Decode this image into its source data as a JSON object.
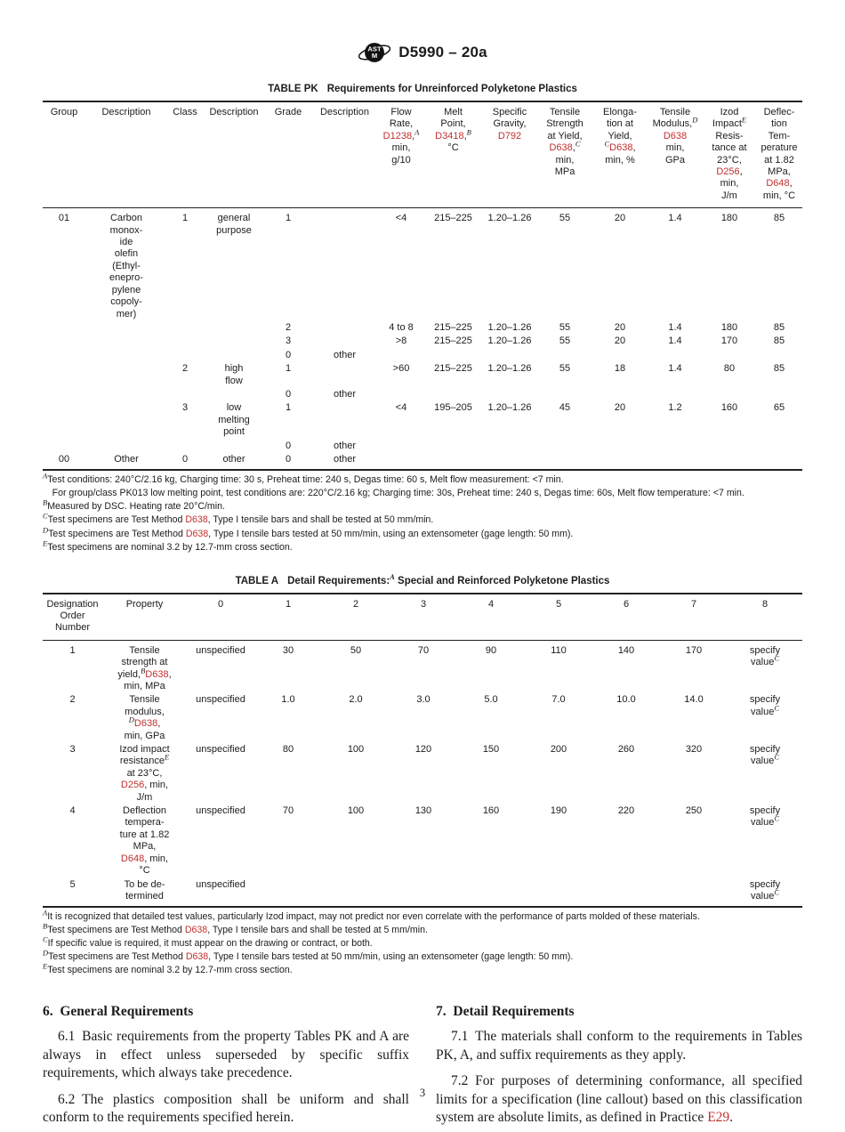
{
  "header": {
    "standard_code": "D5990 – 20a",
    "logo_name": "astm-logo"
  },
  "table_pk": {
    "label": "TABLE PK",
    "title": "Requirements for Unreinforced Polyketone Plastics",
    "headers": [
      "Group",
      "Description",
      "Class",
      "Description",
      "Grade",
      "Description",
      "Flow\nRate,\n{{D1238}},^{A}\nmin,\ng/10",
      "Melt\nPoint,\n{{D3418}},^{B}\n°C",
      "Specific\nGravity,\n{{D792}}",
      "Tensile\nStrength\nat Yield,\n{{D638}},^{C}\nmin,\nMPa",
      "Elonga-\ntion at\nYield,\n^{C}{{D638}},\nmin, %",
      "Tensile\nModulus,^{D}\n{{D638}}\nmin,\nGPa",
      "Izod\nImpact^{E}\nResis-\ntance at\n23°C,\n{{D256}},\nmin,\nJ/m",
      "Deflec-\ntion\nTem-\nperature\nat 1.82\nMPa,\n{{D648}},\nmin, °C"
    ],
    "rows": [
      [
        "01",
        "Carbon\nmonox-\nide\nolefin\n(Ethyl-\nenepro-\npylene\ncopoly-\nmer)",
        "1",
        "general\npurpose",
        "1",
        "",
        "<4",
        "215–225",
        "1.20–1.26",
        "55",
        "20",
        "1.4",
        "180",
        "85"
      ],
      [
        "",
        "",
        "",
        "",
        "2",
        "",
        "4 to 8",
        "215–225",
        "1.20–1.26",
        "55",
        "20",
        "1.4",
        "180",
        "85"
      ],
      [
        "",
        "",
        "",
        "",
        "3",
        "",
        ">8",
        "215–225",
        "1.20–1.26",
        "55",
        "20",
        "1.4",
        "170",
        "85"
      ],
      [
        "",
        "",
        "",
        "",
        "0",
        "other",
        "",
        "",
        "",
        "",
        "",
        "",
        "",
        ""
      ],
      [
        "",
        "",
        "2",
        "high\nflow",
        "1",
        "",
        ">60",
        "215–225",
        "1.20–1.26",
        "55",
        "18",
        "1.4",
        "80",
        "85"
      ],
      [
        "",
        "",
        "",
        "",
        "0",
        "other",
        "",
        "",
        "",
        "",
        "",
        "",
        "",
        ""
      ],
      [
        "",
        "",
        "3",
        "low\nmelting\npoint",
        "1",
        "",
        "<4",
        "195–205",
        "1.20–1.26",
        "45",
        "20",
        "1.2",
        "160",
        "65"
      ],
      [
        "",
        "",
        "",
        "",
        "0",
        "other",
        "",
        "",
        "",
        "",
        "",
        "",
        "",
        ""
      ],
      [
        "00",
        "Other",
        "0",
        "other",
        "0",
        "other",
        "",
        "",
        "",
        "",
        "",
        "",
        "",
        ""
      ]
    ],
    "footnotes": [
      "^{A}Test conditions: 240°C/2.16 kg, Charging time: 30 s, Preheat time: 240 s, Degas time: 60 s, Melt flow measurement: <7 min.",
      " For group/class PK013 low melting point, test conditions are: 220°C/2.16 kg; Charging time: 30s, Preheat time: 240 s, Degas time: 60s, Melt flow temperature: <7 min.",
      "^{B}Measured by DSC. Heating rate 20°C/min.",
      "^{C}Test specimens are Test Method {{D638}}, Type I tensile bars and shall be tested at 50 mm/min.",
      "^{D}Test specimens are Test Method {{D638}}, Type I tensile bars tested at 50 mm/min, using an extensometer (gage length: 50 mm).",
      "^{E}Test specimens are nominal 3.2 by 12.7-mm cross section."
    ]
  },
  "table_a": {
    "label": "TABLE A",
    "title": "Detail Requirements:^{A} Special and Reinforced Polyketone Plastics",
    "headers": [
      "Designation\nOrder\nNumber",
      "Property",
      "0",
      "1",
      "2",
      "3",
      "4",
      "5",
      "6",
      "7",
      "8"
    ],
    "rows": [
      [
        "1",
        "Tensile\nstrength at\nyield,^{B}{{D638}},\nmin, MPa",
        "unspecified",
        "30",
        "50",
        "70",
        "90",
        "110",
        "140",
        "170",
        "specify\nvalue^{C}"
      ],
      [
        "2",
        "Tensile\nmodulus,\n^{D}{{D638}},\nmin, GPa",
        "unspecified",
        "1.0",
        "2.0",
        "3.0",
        "5.0",
        "7.0",
        "10.0",
        "14.0",
        "specify\nvalue^{C}"
      ],
      [
        "3",
        "Izod impact\nresistance^{E}\nat 23°C,\n{{D256}}, min,\nJ/m",
        "unspecified",
        "80",
        "100",
        "120",
        "150",
        "200",
        "260",
        "320",
        "specify\nvalue^{C}"
      ],
      [
        "4",
        "Deflection\ntempera-\nture at 1.82\nMPa,\n{{D648}}, min,\n°C",
        "unspecified",
        "70",
        "100",
        "130",
        "160",
        "190",
        "220",
        "250",
        "specify\nvalue^{C}"
      ],
      [
        "5",
        "To be de-\ntermined",
        "unspecified",
        "",
        "",
        "",
        "",
        "",
        "",
        "",
        "specify\nvalue^{C}"
      ]
    ],
    "footnotes": [
      "^{A}It is recognized that detailed test values, particularly Izod impact, may not predict nor even correlate with the performance of parts molded of these materials.",
      "^{B}Test specimens are Test Method {{D638}}, Type I tensile bars and shall be tested at 5 mm/min.",
      "^{C}If specific value is required, it must appear on the drawing or contract, or both.",
      "^{D}Test specimens are Test Method {{D638}}, Type I tensile bars tested at 50 mm/min, using an extensometer (gage length: 50 mm).",
      "^{E}Test specimens are nominal 3.2 by 12.7-mm cross section."
    ]
  },
  "sections": {
    "left": {
      "heading": "6. General Requirements",
      "paragraphs": [
        "6.1 Basic requirements from the property Tables PK and A are always in effect unless superseded by specific suffix requirements, which always take precedence.",
        "6.2 The plastics composition shall be uniform and shall conform to the requirements specified herein."
      ]
    },
    "right": {
      "heading": "7. Detail Requirements",
      "paragraphs": [
        "7.1 The materials shall conform to the requirements in Tables PK, A, and suffix requirements as they apply.",
        "7.2 For purposes of determining conformance, all specified limits for a specification (line callout) based on this classification system are absolute limits, as defined in Practice {{E29}}."
      ]
    }
  },
  "footer": {
    "page_number": "3"
  },
  "colors": {
    "reference_red": "#c22f2f",
    "rule_color": "#222222"
  }
}
